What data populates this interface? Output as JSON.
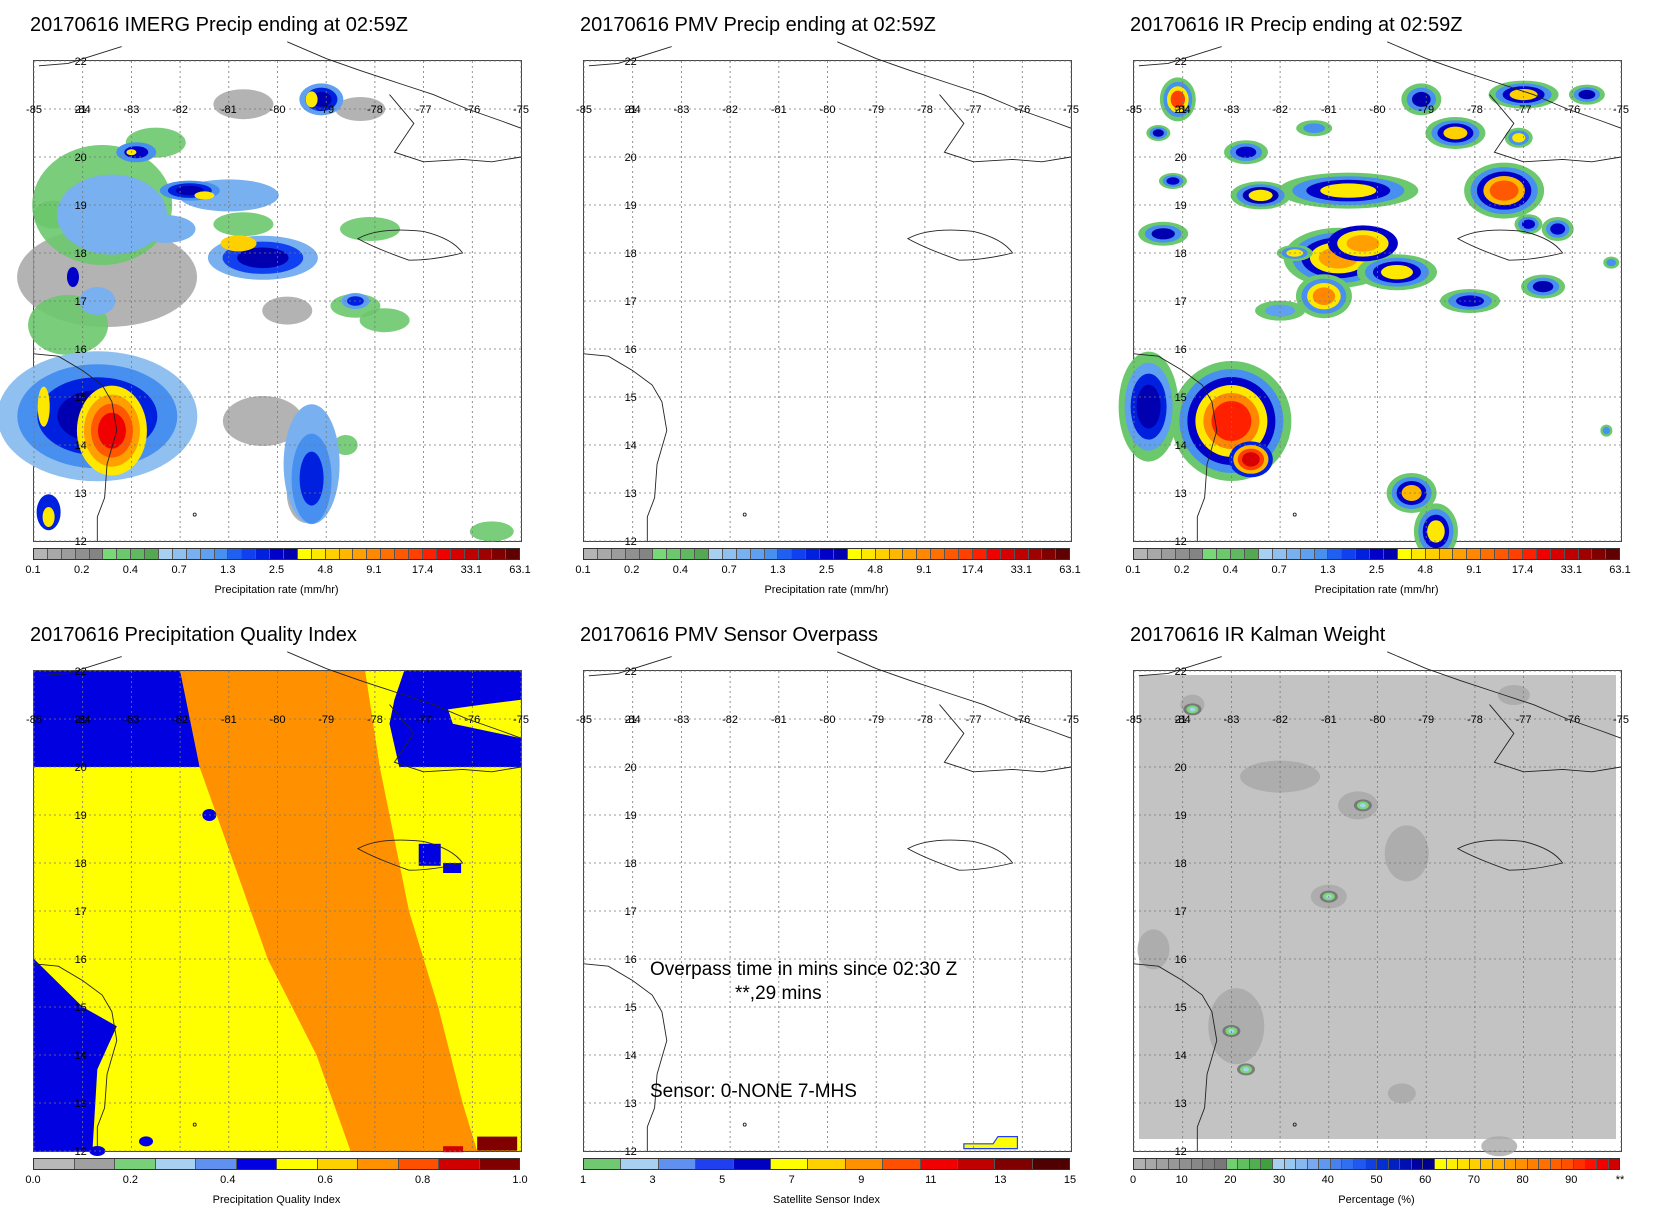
{
  "colorbars": {
    "precip": {
      "colors": [
        "#b4b4b4",
        "#a8a8a8",
        "#9c9c9c",
        "#909090",
        "#848484",
        "#78d878",
        "#6cc86c",
        "#60b860",
        "#54a854",
        "#a8d0f0",
        "#90c0f0",
        "#78b0f0",
        "#60a0f0",
        "#4890f0",
        "#2060f0",
        "#1040f0",
        "#0020e0",
        "#0000c8",
        "#0000b0",
        "#ffff00",
        "#ffe800",
        "#ffd000",
        "#ffb800",
        "#ffa000",
        "#ff8800",
        "#ff7000",
        "#ff5800",
        "#ff4000",
        "#ff2000",
        "#f00000",
        "#d80000",
        "#c00000",
        "#a00000",
        "#800000",
        "#600000"
      ],
      "ticks": [
        "0.1",
        "0.2",
        "0.4",
        "0.7",
        "1.3",
        "2.5",
        "4.8",
        "9.1",
        "17.4",
        "33.1",
        "63.1"
      ],
      "label": "Precipitation rate (mm/hr)"
    },
    "quality": {
      "colors": [
        "#b8b8b8",
        "#a0a0a0",
        "#78d078",
        "#a8d0f0",
        "#6090f0",
        "#0000e0",
        "#ffff00",
        "#ffd000",
        "#ff9000",
        "#ff5000",
        "#d00000",
        "#800000"
      ],
      "ticks": [
        "0.0",
        "0.2",
        "0.4",
        "0.6",
        "0.8",
        "1.0"
      ],
      "label": "Precipitation Quality Index"
    },
    "sensor": {
      "colors": [
        "#70c870",
        "#a8d0f0",
        "#6090f0",
        "#2040f0",
        "#0000c0",
        "#ffff00",
        "#ffd000",
        "#ff9000",
        "#ff5000",
        "#f00000",
        "#c00000",
        "#800000",
        "#500000"
      ],
      "ticks": [
        "1",
        "3",
        "5",
        "7",
        "9",
        "11",
        "13",
        "15"
      ],
      "label": "Satellite Sensor Index"
    },
    "percent": {
      "colors": [
        "#b0b0b0",
        "#a8a8a8",
        "#a0a0a0",
        "#989898",
        "#909090",
        "#888888",
        "#808080",
        "#787878",
        "#70d070",
        "#60c060",
        "#50b050",
        "#40a040",
        "#a8d0f0",
        "#98c8f0",
        "#88b8f0",
        "#78a8f0",
        "#6098f0",
        "#4880f0",
        "#3070f0",
        "#2058f0",
        "#1040e0",
        "#0030d0",
        "#0020c0",
        "#0010b0",
        "#0000a0",
        "#000090",
        "#ffff00",
        "#fff000",
        "#ffe000",
        "#ffd000",
        "#ffc000",
        "#ffb000",
        "#ffa000",
        "#ff9000",
        "#ff8000",
        "#ff7000",
        "#ff6000",
        "#ff5000",
        "#ff3000",
        "#ff1000",
        "#f00000",
        "#d00000"
      ],
      "ticks": [
        "0",
        "10",
        "20",
        "30",
        "40",
        "50",
        "60",
        "70",
        "80",
        "90",
        "**"
      ],
      "label": "Percentage (%)"
    }
  },
  "map_axes": {
    "lon_labels": [
      "-85",
      "-84",
      "-83",
      "-82",
      "-81",
      "-80",
      "-79",
      "-78",
      "-77",
      "-76",
      "-75"
    ],
    "lat_labels": [
      "22",
      "21",
      "20",
      "19",
      "18",
      "17",
      "16",
      "15",
      "14",
      "13",
      "12"
    ]
  },
  "panels": [
    {
      "id": "imerg",
      "title": "20170616 IMERG Precip ending at 02:59Z",
      "colorbar": "precip"
    },
    {
      "id": "pmv",
      "title": "20170616 PMV Precip ending at 02:59Z",
      "colorbar": "precip"
    },
    {
      "id": "ir",
      "title": "20170616 IR Precip ending at 02:59Z",
      "colorbar": "precip"
    },
    {
      "id": "quality",
      "title": "20170616 Precipitation Quality Index",
      "colorbar": "quality"
    },
    {
      "id": "overpass",
      "title": "20170616 PMV Sensor Overpass",
      "colorbar": "sensor",
      "overpass_line1": "Overpass time in mins since 02:30 Z",
      "overpass_line2": "**,29 mins",
      "sensor_line": "Sensor:   0-NONE  7-MHS"
    },
    {
      "id": "kalman",
      "title": "20170616 IR Kalman Weight",
      "colorbar": "percent"
    }
  ],
  "chart_data": [
    {
      "type": "heatmap",
      "title": "20170616 IMERG Precip ending at 02:59Z",
      "xlabel": "",
      "ylabel": "",
      "xlim": [
        -85,
        -75
      ],
      "ylim": [
        12,
        22
      ],
      "colorbar_label": "Precipitation rate (mm/hr)",
      "features": [
        {
          "area": "lon -85..-82, lat 13..16",
          "level": "2.5-17.4"
        },
        {
          "area": "lon -83.6..-83.1, lat 13.8..14.8",
          "level": "9.1-33.1"
        },
        {
          "area": "lon -79.9..-78.5, lat 12.2..15.3",
          "level": "0.7-4.8"
        },
        {
          "area": "lon -81.5..-79.5, lat 16.9..18.4",
          "level": "0.7-9.1"
        },
        {
          "area": "lon -79.7..-78.9, lat 21.0..21.6",
          "level": "1.3-9.1"
        }
      ]
    },
    {
      "type": "heatmap",
      "title": "20170616 PMV Precip ending at 02:59Z",
      "xlim": [
        -85,
        -75
      ],
      "ylim": [
        12,
        22
      ],
      "colorbar_label": "Precipitation rate (mm/hr)",
      "features": []
    },
    {
      "type": "heatmap",
      "title": "20170616 IR Precip ending at 02:59Z",
      "xlim": [
        -85,
        -75
      ],
      "ylim": [
        12,
        22
      ],
      "colorbar_label": "Precipitation rate (mm/hr)",
      "features": [
        {
          "area": "lon -83.2..-82.2, lat 13.5..15.0",
          "level": "4.8-33.1"
        },
        {
          "area": "lon -81.2..-80.0, lat 17.6..18.2",
          "level": "4.8-17.4"
        },
        {
          "area": "lon -77.4..-76.7, lat 19.0..19.4",
          "level": "4.8-17.4"
        },
        {
          "area": "lon -79.1..-78.5, lat 12.0..12.5",
          "level": "2.5-9.1"
        }
      ]
    },
    {
      "type": "heatmap",
      "title": "20170616 Precipitation Quality Index",
      "xlim": [
        -85,
        -75
      ],
      "ylim": [
        12,
        22
      ],
      "colorbar_label": "Precipitation Quality Index",
      "regions": [
        {
          "value": "0.5",
          "area": "northwest corner and southwest lon -85..-83"
        },
        {
          "value": "0.6",
          "area": "central band"
        },
        {
          "value": "0.8",
          "area": "diagonal band lon -82..-77"
        },
        {
          "value": "0.5",
          "area": "northeast corner"
        }
      ]
    },
    {
      "type": "heatmap",
      "title": "20170616 PMV Sensor Overpass",
      "xlim": [
        -85,
        -75
      ],
      "ylim": [
        12,
        22
      ],
      "colorbar_label": "Satellite Sensor Index",
      "features": [
        {
          "area": "lon -77.2..-75.9, lat 12.1..12.3",
          "level": "MHS"
        }
      ]
    },
    {
      "type": "heatmap",
      "title": "20170616 IR Kalman Weight",
      "xlim": [
        -85,
        -75
      ],
      "ylim": [
        12,
        22
      ],
      "colorbar_label": "Percentage (%)",
      "features": [
        {
          "area": "mostly 0-10 % background"
        },
        {
          "area": "spots near -83.8,21.2 / -83.0,14.5 / -82.7,13.7 / -81.0,17.3 / -80.3,19.2",
          "level": "10-20 %"
        }
      ]
    }
  ]
}
